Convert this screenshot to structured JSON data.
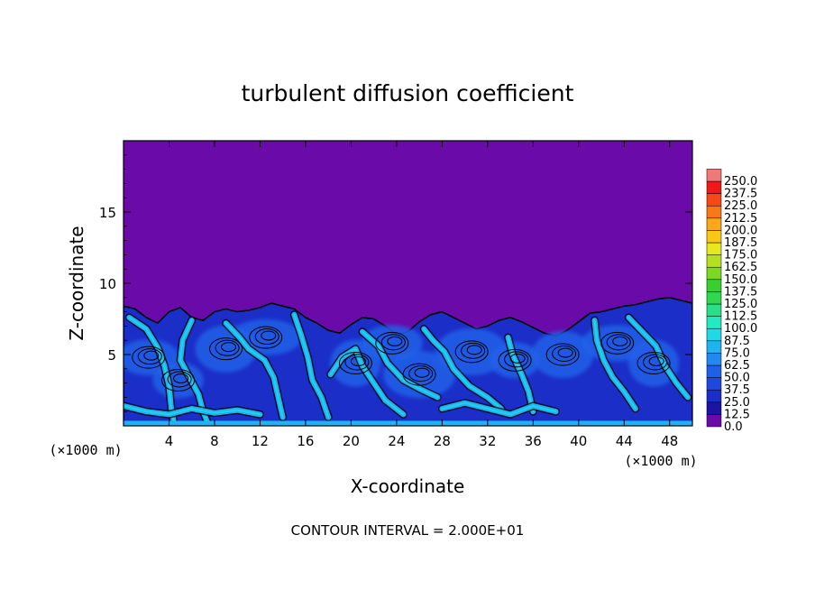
{
  "chart_data": {
    "type": "heatmap",
    "title": "turbulent diffusion coefficient",
    "xlabel": "X-coordinate",
    "ylabel": "Z-coordinate",
    "x_unit": "(×1000 m)",
    "y_unit": "(×1000 m)",
    "xlim": [
      0,
      50
    ],
    "ylim": [
      0,
      20
    ],
    "x_ticks": [
      4,
      8,
      12,
      16,
      20,
      24,
      28,
      32,
      36,
      40,
      44,
      48
    ],
    "y_ticks": [
      5,
      10,
      15
    ],
    "contour_note": "CONTOUR INTERVAL = 2.000E+01",
    "colorbar": {
      "levels": [
        "0.0",
        "12.5",
        "25.0",
        "37.5",
        "50.0",
        "62.5",
        "75.0",
        "87.5",
        "100.0",
        "112.5",
        "125.0",
        "137.5",
        "150.0",
        "162.5",
        "175.0",
        "187.5",
        "200.0",
        "212.5",
        "225.0",
        "237.5",
        "250.0"
      ],
      "colors": [
        "#6a0aa8",
        "#1a14a0",
        "#1c2ec8",
        "#1f48dc",
        "#2060e8",
        "#2289f0",
        "#1fb4f0",
        "#20d8e8",
        "#24e8c0",
        "#28e08a",
        "#30d850",
        "#38d030",
        "#7cd820",
        "#b4e020",
        "#e8e820",
        "#f8c818",
        "#f8a818",
        "#f87818",
        "#f84818",
        "#f01818",
        "#f07878"
      ]
    },
    "fields": {
      "background": "#6a0aa8",
      "mixing_layer": "#1c2ec8",
      "core": "#2060e8",
      "streaks": "#1fb4f0",
      "hot": "#20d8e8",
      "contour": "#000000"
    },
    "regions": {
      "boundary_top": [
        [
          0,
          8.4
        ],
        [
          1,
          8.2
        ],
        [
          2,
          7.6
        ],
        [
          3,
          7.2
        ],
        [
          4,
          8.0
        ],
        [
          5,
          8.3
        ],
        [
          6,
          7.6
        ],
        [
          7,
          7.4
        ],
        [
          8,
          8.0
        ],
        [
          9,
          8.2
        ],
        [
          10,
          8.0
        ],
        [
          11,
          8.1
        ],
        [
          12,
          8.3
        ],
        [
          13,
          8.6
        ],
        [
          14,
          8.4
        ],
        [
          15,
          8.2
        ],
        [
          16,
          7.6
        ],
        [
          17,
          7.2
        ],
        [
          18,
          6.7
        ],
        [
          19,
          6.5
        ],
        [
          20,
          7.1
        ],
        [
          21,
          7.6
        ],
        [
          22,
          7.5
        ],
        [
          23,
          7.0
        ],
        [
          24,
          6.4
        ],
        [
          25,
          6.6
        ],
        [
          26,
          7.3
        ],
        [
          27,
          7.8
        ],
        [
          28,
          8.0
        ],
        [
          29,
          7.6
        ],
        [
          30,
          7.2
        ],
        [
          31,
          6.8
        ],
        [
          32,
          7.0
        ],
        [
          33,
          7.4
        ],
        [
          34,
          7.6
        ],
        [
          35,
          7.3
        ],
        [
          36,
          6.9
        ],
        [
          37,
          6.5
        ],
        [
          38,
          6.3
        ],
        [
          39,
          6.7
        ],
        [
          40,
          7.3
        ],
        [
          41,
          7.9
        ],
        [
          42,
          8.0
        ],
        [
          43,
          8.2
        ],
        [
          44,
          8.4
        ],
        [
          45,
          8.5
        ],
        [
          46,
          8.7
        ],
        [
          47,
          8.9
        ],
        [
          48,
          9.0
        ],
        [
          49,
          8.8
        ],
        [
          50,
          8.6
        ]
      ],
      "streak_paths": [
        [
          [
            0.5,
            7.6
          ],
          [
            2,
            6.8
          ],
          [
            3,
            5.5
          ],
          [
            3.6,
            4.2
          ],
          [
            4,
            2.8
          ],
          [
            4.2,
            1.2
          ],
          [
            4.4,
            0.4
          ]
        ],
        [
          [
            6,
            7.4
          ],
          [
            5.2,
            6
          ],
          [
            5,
            4.6
          ],
          [
            5.8,
            3.4
          ],
          [
            6.6,
            2.2
          ],
          [
            7,
            1
          ],
          [
            7.4,
            0.2
          ]
        ],
        [
          [
            9,
            7.2
          ],
          [
            10.2,
            6.2
          ],
          [
            11,
            5.4
          ],
          [
            12.4,
            4.6
          ],
          [
            13.2,
            3.4
          ],
          [
            13.6,
            2
          ],
          [
            14,
            0.6
          ]
        ],
        [
          [
            15,
            7.8
          ],
          [
            15.6,
            6.4
          ],
          [
            16.2,
            4.8
          ],
          [
            16.6,
            3.2
          ],
          [
            17.4,
            2
          ],
          [
            18,
            0.6
          ]
        ],
        [
          [
            18.2,
            3.6
          ],
          [
            19.2,
            4.8
          ],
          [
            20.4,
            5.4
          ],
          [
            21,
            4.2
          ],
          [
            22,
            3
          ],
          [
            23,
            1.8
          ],
          [
            24.6,
            0.8
          ]
        ],
        [
          [
            21,
            6.6
          ],
          [
            22.4,
            5.6
          ],
          [
            23.2,
            4.4
          ],
          [
            24.6,
            3.2
          ],
          [
            26,
            2.6
          ],
          [
            27.6,
            2
          ]
        ],
        [
          [
            26.4,
            6.8
          ],
          [
            27.2,
            6
          ],
          [
            28.2,
            5.2
          ],
          [
            29,
            4
          ],
          [
            30.4,
            2.8
          ],
          [
            32,
            2
          ],
          [
            33.2,
            1.2
          ]
        ],
        [
          [
            33.8,
            6.2
          ],
          [
            34.2,
            5
          ],
          [
            35,
            3.6
          ],
          [
            35.6,
            2.4
          ],
          [
            36,
            1
          ]
        ],
        [
          [
            41.4,
            7.4
          ],
          [
            41.6,
            6
          ],
          [
            42.2,
            4.6
          ],
          [
            43,
            3.4
          ],
          [
            44,
            2.4
          ],
          [
            45,
            1.2
          ]
        ],
        [
          [
            44.4,
            7.6
          ],
          [
            45.6,
            6.6
          ],
          [
            46.8,
            5.6
          ],
          [
            47.6,
            4.2
          ],
          [
            48.6,
            3
          ],
          [
            49.6,
            2
          ]
        ],
        [
          [
            28,
            1.2
          ],
          [
            30,
            1.6
          ],
          [
            32,
            1.2
          ],
          [
            34,
            0.8
          ],
          [
            36,
            1.4
          ],
          [
            38,
            1.0
          ]
        ],
        [
          [
            0,
            1.4
          ],
          [
            2,
            1.0
          ],
          [
            4,
            0.8
          ],
          [
            6,
            1.2
          ],
          [
            8,
            0.9
          ],
          [
            10,
            1.1
          ],
          [
            12,
            0.8
          ]
        ]
      ],
      "swirls": [
        [
          4.8,
          3.2
        ],
        [
          9,
          5.4
        ],
        [
          12.5,
          6.2
        ],
        [
          20.4,
          4.4
        ],
        [
          23.6,
          5.8
        ],
        [
          30.6,
          5.2
        ],
        [
          34.4,
          4.6
        ],
        [
          38.6,
          5.0
        ],
        [
          43.4,
          5.8
        ],
        [
          46.6,
          4.4
        ],
        [
          2.2,
          4.8
        ],
        [
          26,
          3.6
        ]
      ]
    }
  }
}
